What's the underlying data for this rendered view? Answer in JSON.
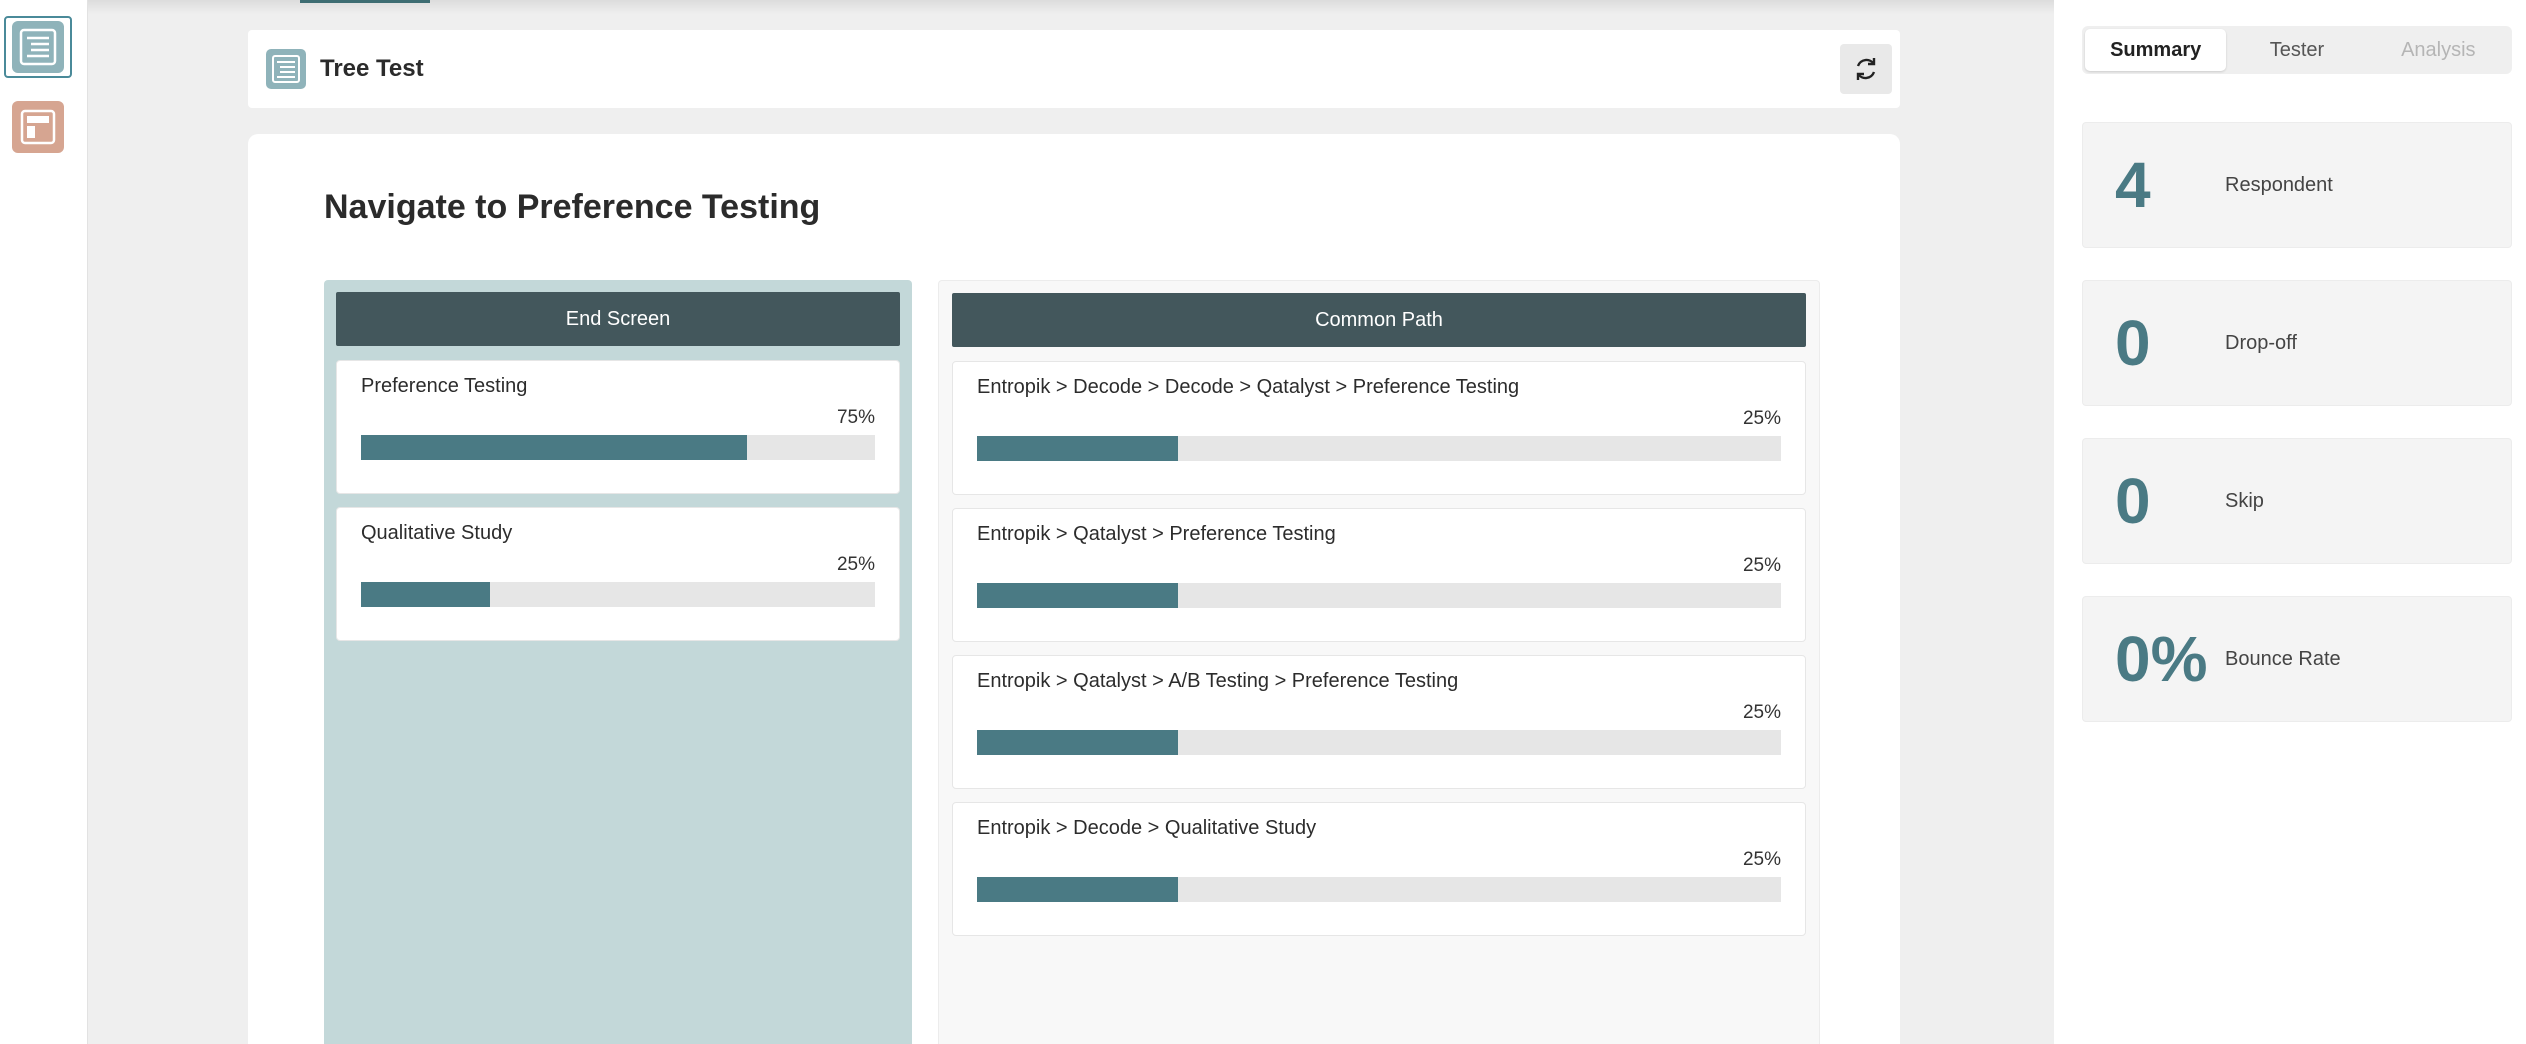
{
  "rail": {
    "items": [
      {
        "name": "tree-test",
        "active": true
      },
      {
        "name": "preference-test",
        "active": false
      }
    ]
  },
  "header": {
    "title": "Tree Test"
  },
  "question": {
    "title": "Navigate to Preference Testing"
  },
  "end_screen": {
    "heading": "End Screen",
    "items": [
      {
        "label": "Preference Testing",
        "percent_label": "75%",
        "percent": 75
      },
      {
        "label": "Qualitative Study",
        "percent_label": "25%",
        "percent": 25
      }
    ]
  },
  "common_path": {
    "heading": "Common Path",
    "items": [
      {
        "label": "Entropik > Decode > Decode > Qatalyst > Preference Testing",
        "percent_label": "25%",
        "percent": 25
      },
      {
        "label": "Entropik > Qatalyst > Preference Testing",
        "percent_label": "25%",
        "percent": 25
      },
      {
        "label": "Entropik > Qatalyst > A/B Testing > Preference Testing",
        "percent_label": "25%",
        "percent": 25
      },
      {
        "label": "Entropik > Decode > Qualitative Study",
        "percent_label": "25%",
        "percent": 25
      }
    ]
  },
  "side": {
    "tabs": [
      {
        "label": "Summary",
        "state": "active"
      },
      {
        "label": "Tester",
        "state": "normal"
      },
      {
        "label": "Analysis",
        "state": "disabled"
      }
    ],
    "stats": [
      {
        "value": "4",
        "label": "Respondent"
      },
      {
        "value": "0",
        "label": "Drop-off"
      },
      {
        "value": "0",
        "label": "Skip"
      },
      {
        "value": "0%",
        "label": "Bounce Rate"
      }
    ]
  },
  "colors": {
    "accent": "#4a7a84",
    "column_header": "#43575c",
    "end_screen_bg": "#c3d8d9",
    "bar_track": "#e6e6e6"
  }
}
